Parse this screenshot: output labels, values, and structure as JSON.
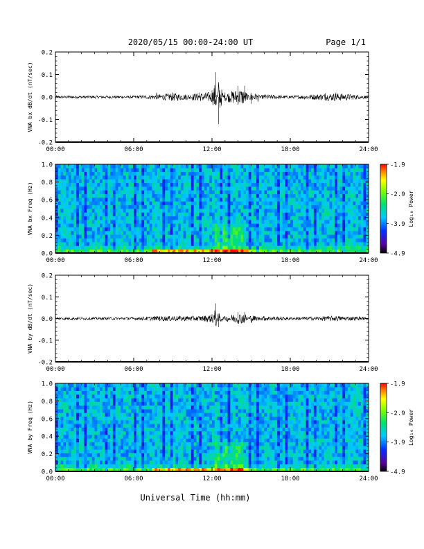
{
  "header": {
    "title": "2020/05/15  00:00-24:00 UT",
    "page": "Page 1/1"
  },
  "footer": {
    "xlabel": "Universal Time (hh:mm)"
  },
  "colorbar": {
    "label": "Log₁₀ Power",
    "ticks": [
      "-1.9",
      "-2.9",
      "-3.9",
      "-4.9"
    ]
  },
  "colors": {
    "trace": "#000000",
    "spectrogram_low": "#1e5fff",
    "spectrogram_high": "#ff0000"
  },
  "chart_data": [
    {
      "type": "line",
      "ylabel": "VNA bx dB/dt (nT/sec)",
      "xlim": [
        0,
        24
      ],
      "ylim": [
        -0.2,
        0.2
      ],
      "xticks": [
        "00:00",
        "06:00",
        "12:00",
        "18:00",
        "24:00"
      ],
      "yticks": [
        "-0.2",
        "-0.1",
        "0.0",
        "0.1",
        "0.2"
      ],
      "x": [
        0,
        2,
        4,
        6,
        8,
        9,
        10,
        11,
        12,
        12.3,
        12.5,
        13,
        14,
        14.5,
        15,
        16,
        18,
        21.5,
        24
      ],
      "values": [
        0,
        0,
        0,
        0,
        0.01,
        0.02,
        0.01,
        0.02,
        0.03,
        0.11,
        -0.12,
        0.02,
        0.05,
        0.05,
        -0.03,
        0.01,
        0,
        0.02,
        0
      ]
    },
    {
      "type": "heatmap",
      "ylabel": "VNA bx Freq (Hz)",
      "xlim": [
        0,
        24
      ],
      "ylim": [
        0,
        1.0
      ],
      "xticks": [
        "00:00",
        "06:00",
        "12:00",
        "18:00",
        "24:00"
      ],
      "yticks": [
        "0.0",
        "0.2",
        "0.4",
        "0.6",
        "0.8",
        "1.0"
      ],
      "zlim": [
        -4.9,
        -1.9
      ],
      "zlabel": "Log₁₀ Power"
    },
    {
      "type": "line",
      "ylabel": "VNA by dB/dt (nT/sec)",
      "xlim": [
        0,
        24
      ],
      "ylim": [
        -0.2,
        0.2
      ],
      "xticks": [
        "00:00",
        "06:00",
        "12:00",
        "18:00",
        "24:00"
      ],
      "yticks": [
        "-0.2",
        "-0.1",
        "0.0",
        "0.1",
        "0.2"
      ],
      "x": [
        0,
        2,
        4,
        6,
        8,
        9,
        10,
        11,
        12,
        12.3,
        12.5,
        13,
        14,
        14.5,
        15,
        16,
        18,
        21.5,
        24
      ],
      "values": [
        0,
        0,
        0,
        0,
        0.01,
        0.01,
        0.01,
        0.01,
        0.02,
        0.07,
        -0.04,
        0.01,
        0.03,
        0.03,
        -0.02,
        0.01,
        0,
        0.01,
        0
      ]
    },
    {
      "type": "heatmap",
      "ylabel": "VNA by Freq (Hz)",
      "xlim": [
        0,
        24
      ],
      "ylim": [
        0,
        1.0
      ],
      "xticks": [
        "00:00",
        "06:00",
        "12:00",
        "18:00",
        "24:00"
      ],
      "yticks": [
        "0.0",
        "0.2",
        "0.4",
        "0.6",
        "0.8",
        "1.0"
      ],
      "zlim": [
        -4.9,
        -1.9
      ],
      "zlabel": "Log₁₀ Power"
    }
  ]
}
